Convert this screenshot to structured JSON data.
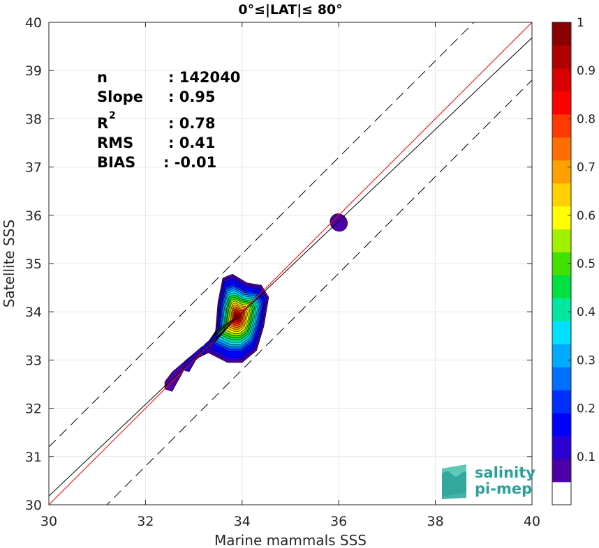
{
  "chart_data": {
    "type": "contour-scatter",
    "title": "0°≤|LAT|≤ 80°",
    "xlabel": "Marine mammals SSS",
    "ylabel": "Satellite SSS",
    "xlim": [
      30,
      40
    ],
    "ylim": [
      30,
      40
    ],
    "x_ticks": [
      "30",
      "32",
      "34",
      "36",
      "38",
      "40"
    ],
    "y_ticks": [
      "30",
      "31",
      "32",
      "33",
      "34",
      "35",
      "36",
      "37",
      "38",
      "39",
      "40"
    ],
    "grid": true,
    "stats": [
      {
        "label": "n",
        "value": ": 142040"
      },
      {
        "label": "Slope",
        "value": ": 0.95"
      },
      {
        "label": "R",
        "sup": "2",
        "value": ": 0.78"
      },
      {
        "label": "RMS",
        "value": ": 0.41"
      },
      {
        "label": "BIAS",
        "value": ": -0.01"
      }
    ],
    "lines": [
      {
        "name": "one-to-one",
        "color": "#ff0000",
        "slope": 1.0,
        "intercept": 0.0,
        "style": "solid"
      },
      {
        "name": "fit",
        "color": "#000000",
        "slope": 0.95,
        "intercept": 1.68,
        "style": "solid"
      },
      {
        "name": "upper-bound",
        "color": "#000000",
        "slope": 1.0,
        "intercept": 1.2,
        "style": "dashed"
      },
      {
        "name": "lower-bound",
        "color": "#000000",
        "slope": 1.0,
        "intercept": -1.2,
        "style": "dashed"
      }
    ],
    "density_peaks": [
      {
        "x": 33.9,
        "y": 33.9,
        "max_level": 1.0
      },
      {
        "x": 36.0,
        "y": 35.85,
        "max_level": 0.1
      }
    ],
    "colorbar": {
      "min": 0,
      "max": 1,
      "ticks": [
        "0.1",
        "0.2",
        "0.3",
        "0.4",
        "0.5",
        "0.6",
        "0.7",
        "0.8",
        "0.9",
        "1"
      ],
      "colors": [
        "#ffffff",
        "#4b00a8",
        "#2a00d4",
        "#0000ff",
        "#0030ff",
        "#0070ff",
        "#00aaff",
        "#00e0ff",
        "#00e8a0",
        "#00e040",
        "#40e000",
        "#a0f000",
        "#ffff00",
        "#ffd000",
        "#ffa000",
        "#ff6e00",
        "#ff3a00",
        "#ff0000",
        "#d80000",
        "#b00000",
        "#8b0000"
      ]
    },
    "logo": {
      "line1": "salinity",
      "line2": "pi-mep",
      "color": "#2aa198"
    }
  }
}
